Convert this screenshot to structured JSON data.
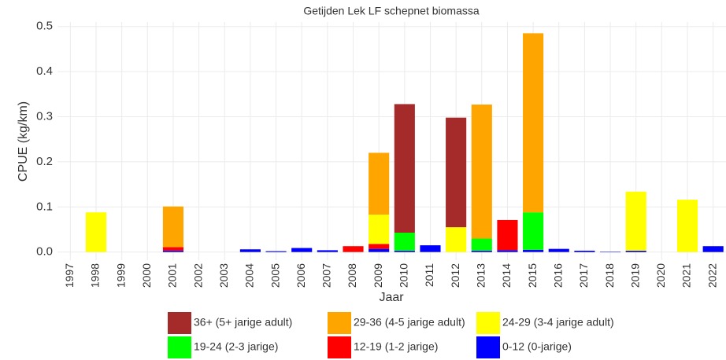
{
  "chart_data": {
    "type": "stacked-bar",
    "title": "Getijden Lek LF schepnet biomassa",
    "xlabel": "Jaar",
    "ylabel": "CPUE (kg/km)",
    "categories": [
      "1997",
      "1998",
      "1999",
      "2000",
      "2001",
      "2002",
      "2003",
      "2004",
      "2005",
      "2006",
      "2007",
      "2008",
      "2009",
      "2010",
      "2011",
      "2012",
      "2013",
      "2014",
      "2015",
      "2016",
      "2017",
      "2018",
      "2019",
      "2020",
      "2021",
      "2022"
    ],
    "series": [
      {
        "name": "36+ (5+ jarige adult)",
        "color": "#a52a2a",
        "values": [
          0,
          0,
          0,
          0,
          0,
          0,
          0,
          0,
          0,
          0,
          0,
          0,
          0,
          0.285,
          0,
          0.243,
          0,
          0,
          0,
          0,
          0,
          0,
          0,
          0,
          0,
          0
        ]
      },
      {
        "name": "29-36 (4-5 jarige adult)",
        "color": "#ffa500",
        "values": [
          0,
          0,
          0,
          0,
          0.09,
          0,
          0,
          0,
          0,
          0,
          0,
          0,
          0.137,
          0,
          0,
          0,
          0.297,
          0,
          0.397,
          0,
          0,
          0,
          0,
          0,
          0,
          0
        ]
      },
      {
        "name": "24-29 (3-4 jarige adult)",
        "color": "#ffff00",
        "values": [
          0,
          0.088,
          0,
          0,
          0,
          0,
          0,
          0,
          0,
          0,
          0,
          0,
          0.065,
          0,
          0,
          0.055,
          0,
          0,
          0,
          0,
          0,
          0,
          0.131,
          0,
          0.116,
          0
        ]
      },
      {
        "name": "19-24 (2-3 jarige)",
        "color": "#00ff00",
        "values": [
          0,
          0,
          0,
          0,
          0,
          0,
          0,
          0,
          0,
          0,
          0,
          0,
          0,
          0.04,
          0,
          0,
          0.027,
          0,
          0.083,
          0,
          0,
          0,
          0,
          0,
          0,
          0
        ]
      },
      {
        "name": "12-19 (1-2 jarige)",
        "color": "#ff0000",
        "values": [
          0,
          0,
          0,
          0,
          0.008,
          0,
          0,
          0,
          0,
          0,
          0,
          0.013,
          0.011,
          0,
          0,
          0,
          0,
          0.067,
          0,
          0,
          0,
          0,
          0,
          0,
          0,
          0
        ]
      },
      {
        "name": "0-12 (0-jarige)",
        "color": "#0000ff",
        "values": [
          0,
          0,
          0,
          0,
          0.003,
          0,
          0,
          0.006,
          0.002,
          0.009,
          0.004,
          0,
          0.007,
          0.003,
          0.015,
          0,
          0.003,
          0.004,
          0.005,
          0.007,
          0.003,
          0.001,
          0.003,
          0,
          0,
          0.013
        ]
      }
    ],
    "ylim": [
      -0.018,
      0.51
    ],
    "yticks": [
      {
        "value": 0,
        "label": "0.0"
      },
      0.1,
      0.2,
      0.3,
      0.4,
      0.5
    ],
    "grid": true
  }
}
